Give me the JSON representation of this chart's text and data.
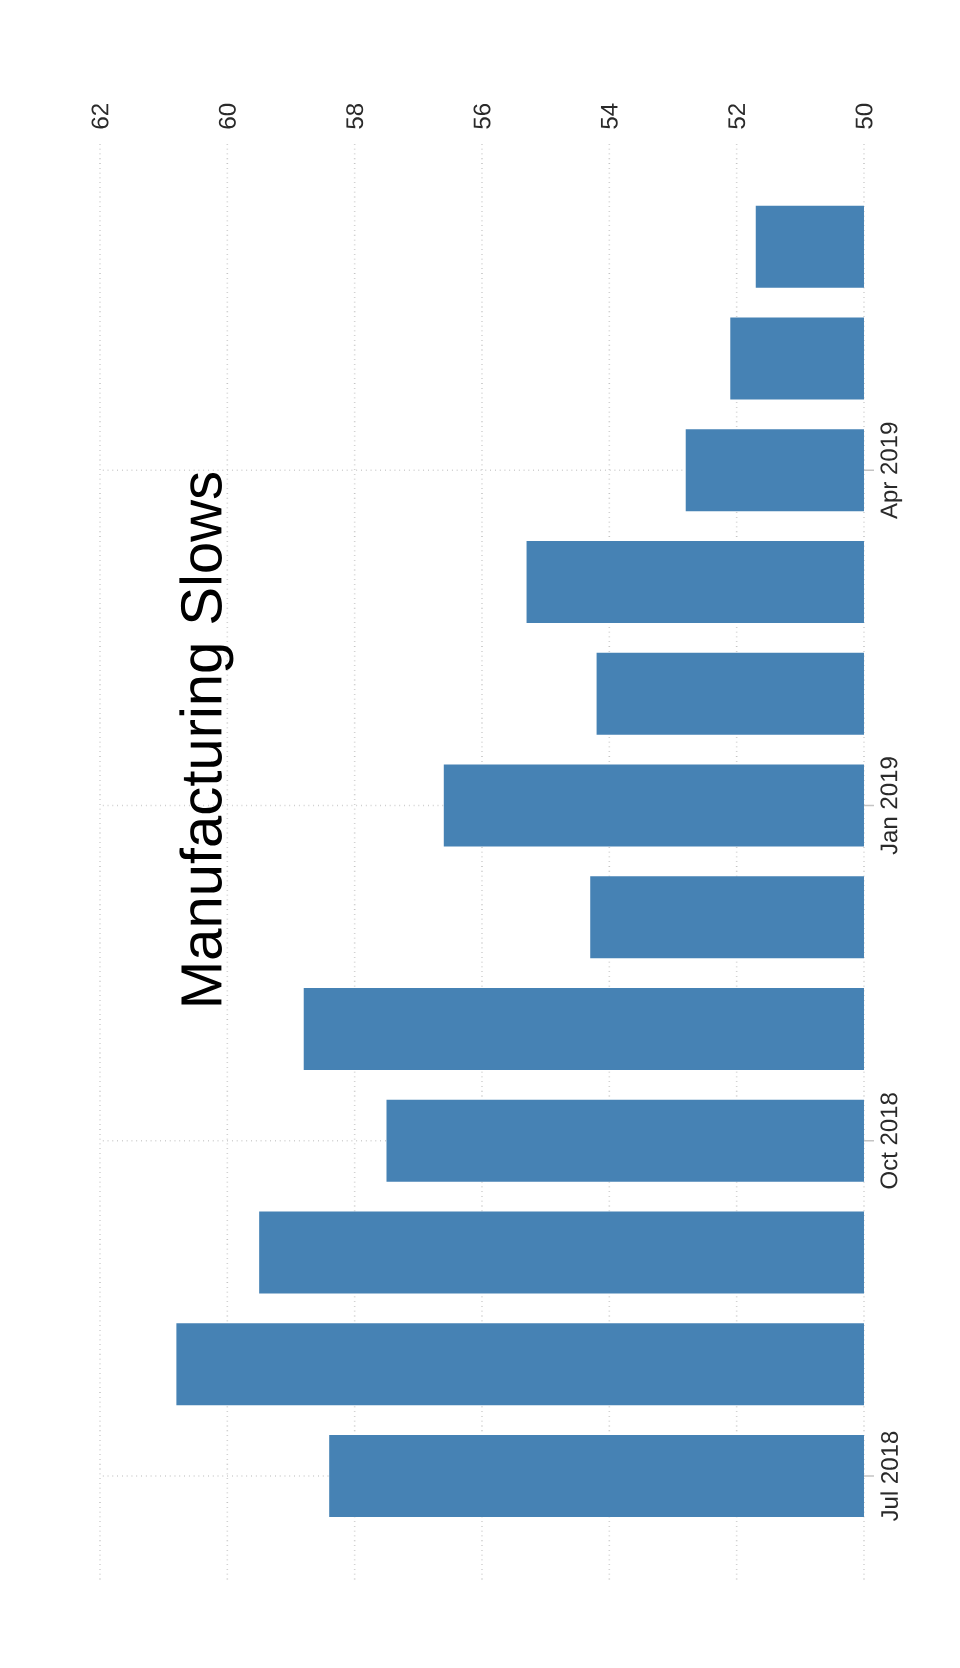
{
  "chart_data": {
    "type": "bar",
    "title": "Manufacturing Slows",
    "orientation": "horizontal",
    "categories": [
      null,
      null,
      "Apr 2019",
      null,
      null,
      "Jan 2019",
      null,
      null,
      "Oct 2018",
      null,
      null,
      "Jul 2018"
    ],
    "values": [
      51.7,
      52.1,
      52.8,
      55.3,
      54.2,
      56.6,
      54.3,
      58.8,
      57.5,
      59.5,
      60.8,
      58.4
    ],
    "color": "#4682b4",
    "xlim": [
      62,
      50
    ],
    "xticks": [
      62,
      60,
      58,
      56,
      54,
      52,
      50
    ],
    "grid": true
  }
}
